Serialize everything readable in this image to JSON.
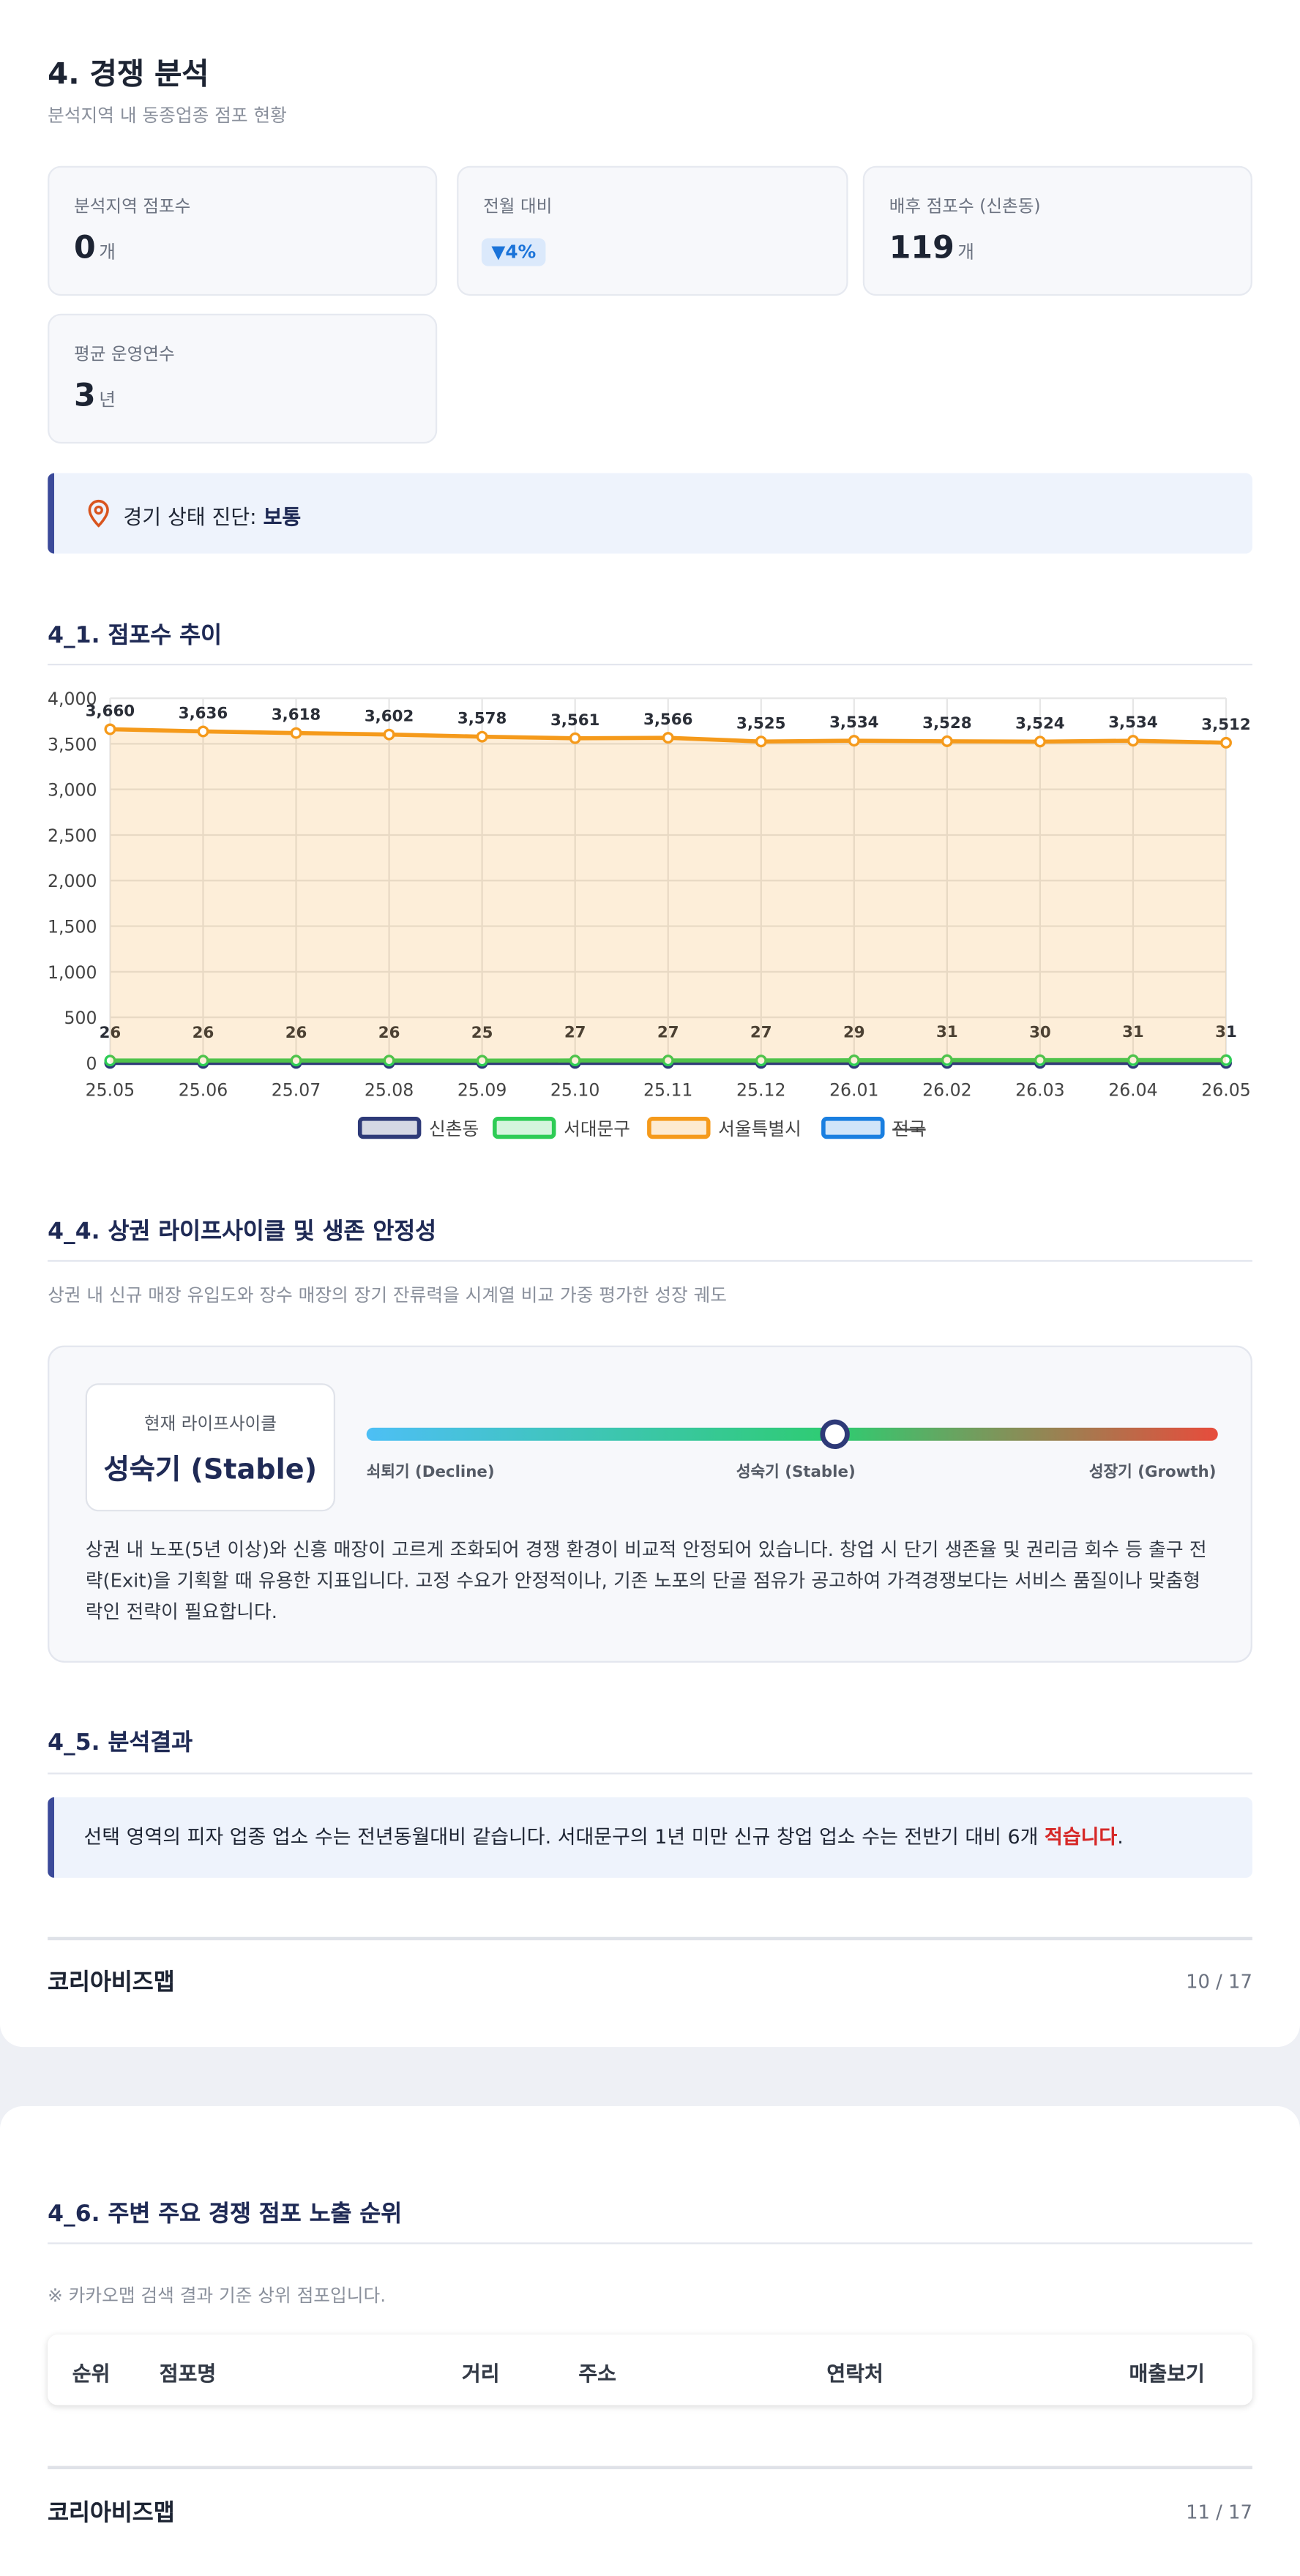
{
  "report": {
    "section_title": "4. 경쟁 분석",
    "section_subtitle": "분석지역 내 동종업종 점포 현황",
    "kpis": [
      {
        "label": "분석지역 점포수",
        "value": 0,
        "unit": "개"
      },
      {
        "label": "전월 대비",
        "badge": "4%"
      },
      {
        "label": "배후 점포수 (신촌동)",
        "value": 119,
        "unit": "개"
      },
      {
        "label": "평균 운영연수",
        "value": 3,
        "unit": "년"
      }
    ],
    "diagnosis": {
      "label": "경기 상태 진단:",
      "value": "보통"
    },
    "trend_title": "4_1. 점포수 추이",
    "lifecycle": {
      "title": "4_4. 상권 라이프사이클 및 생존 안정성",
      "description": "상권 내 신규 매장 유입도와 장수 매장의 장기 잔류력을 시계열 비교 가중 평가한 성장 궤도",
      "current_label": "현재 라이프사이클",
      "current": "성숙기 (Stable)",
      "scale": [
        "쇠퇴기 (Decline)",
        "성숙기 (Stable)",
        "성장기 (Growth)"
      ],
      "body": "상권 내 노포(5년 이상)와 신흥 매장이 고르게 조화되어 경쟁 환경이 비교적 안정되어 있습니다. 창업 시 단기 생존율 및 권리금 회수 등 출구 전략(Exit)을 기획할 때 유용한 지표입니다. 고정 수요가 안정적이나, 기존 노포의 단골 점유가 공고하여 가격경쟁보다는 서비스 품질이나 맞춤형 락인 전략이 필요합니다."
    },
    "result": {
      "title": "4_5. 분석결과",
      "text": "선택 영역의 피자 업종 업소 수는 전년동월대비 같습니다. 서대문구의 1년 미만 신규 창업 업소 수는 전반기 대비 6개 ",
      "emphasis": "적습니다",
      "end": "."
    },
    "footer1": {
      "brand": "코리아비즈맵",
      "page": "10 / 17"
    },
    "ranking": {
      "title": "4_6. 주변 주요 경쟁 점포 노출 순위",
      "note": "※ 카카오맵 검색 결과 기준 상위 점포입니다.",
      "headers": [
        "순위",
        "점포명",
        "거리",
        "주소",
        "연락처",
        "매출보기"
      ]
    },
    "footer2": {
      "brand": "코리아비즈맵",
      "page": "11 / 17"
    }
  },
  "chart_data": {
    "type": "line",
    "categories": [
      "25.05",
      "25.06",
      "25.07",
      "25.08",
      "25.09",
      "25.10",
      "25.11",
      "25.12",
      "26.01",
      "26.02",
      "26.03",
      "26.04",
      "26.05"
    ],
    "series": [
      {
        "name": "신촌동",
        "color": "#2e3a78",
        "values": [
          0,
          0,
          0,
          0,
          0,
          0,
          0,
          0,
          0,
          0,
          0,
          0,
          0
        ]
      },
      {
        "name": "서대문구",
        "color": "#2ecc55",
        "values": [
          26,
          26,
          26,
          26,
          25,
          27,
          27,
          27,
          29,
          31,
          30,
          31,
          31
        ],
        "show_labels": true
      },
      {
        "name": "서울특별시",
        "color": "#f59a1b",
        "area": true,
        "values": [
          3660,
          3636,
          3618,
          3602,
          3578,
          3561,
          3566,
          3525,
          3534,
          3528,
          3524,
          3534,
          3512
        ],
        "value_labels": [
          "3,660",
          "3,636",
          "3,618",
          "3,602",
          "3,578",
          "3,561",
          "3,566",
          "3,525",
          "3,534",
          "3,528",
          "3,524",
          "3,534",
          "3,512"
        ],
        "show_labels": true
      },
      {
        "name": "전국",
        "color": "#1a7fe0",
        "hidden": true,
        "values": [
          null,
          null,
          null,
          null,
          null,
          null,
          null,
          null,
          null,
          null,
          null,
          null,
          null
        ]
      }
    ],
    "ylim": [
      0,
      4000
    ],
    "yticks": [
      0,
      500,
      {
        "value": 1000,
        "label": "1,000"
      },
      {
        "value": 1500,
        "label": "1,500"
      },
      {
        "value": 2000,
        "label": "2,000"
      },
      {
        "value": 2500,
        "label": "2,500"
      },
      {
        "value": 3000,
        "label": "3,000"
      },
      {
        "value": 3500,
        "label": "3,500"
      },
      {
        "value": 4000,
        "label": "4,000"
      }
    ],
    "grid": true,
    "legend": "bottom"
  }
}
